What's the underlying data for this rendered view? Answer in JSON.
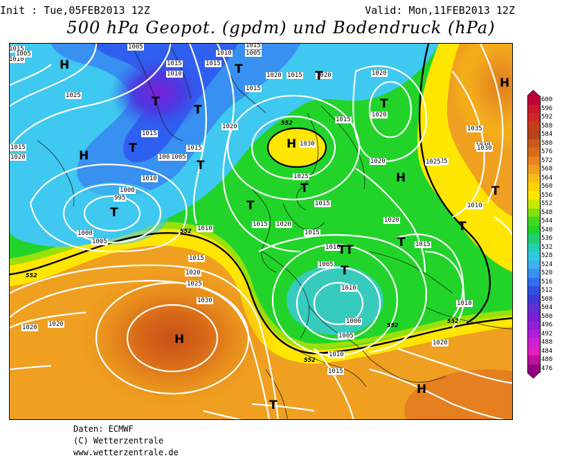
{
  "header": {
    "init": "Init : Tue,05FEB2013 12Z",
    "valid": "Valid: Mon,11FEB2013 12Z",
    "title": "500 hPa Geopot. (gpdm) und Bodendruck (hPa)"
  },
  "footer": {
    "source": "Daten: ECMWF",
    "copyright": "(C) Wetterzentrale",
    "url": "www.wetterzentrale.de"
  },
  "colors": {
    "purple": "#7a1fd6",
    "blue": "#2f5ff0",
    "cyan": "#3fc8f0",
    "green": "#22d42a",
    "yellow": "#ffe600",
    "orange": "#f0a020",
    "dark_orange": "#d86a18",
    "isobar": "#ffffff",
    "contour_552": "#000000"
  },
  "scale": {
    "values": [
      "600",
      "596",
      "592",
      "588",
      "584",
      "580",
      "576",
      "572",
      "568",
      "564",
      "560",
      "556",
      "552",
      "548",
      "544",
      "540",
      "536",
      "532",
      "528",
      "524",
      "520",
      "516",
      "512",
      "508",
      "504",
      "500",
      "496",
      "492",
      "488",
      "484",
      "480",
      "476"
    ],
    "colors": [
      "#c0003c",
      "#c81830",
      "#d02828",
      "#c83c1c",
      "#b84418",
      "#c85a1c",
      "#d86a18",
      "#e88420",
      "#f0a020",
      "#f8bc18",
      "#ffd400",
      "#ffe600",
      "#c8e800",
      "#80e010",
      "#40d820",
      "#22d42a",
      "#20d070",
      "#20d0b0",
      "#30c8e0",
      "#3fb0f0",
      "#3890f0",
      "#2f70f0",
      "#3050e0",
      "#4038d8",
      "#6030d0",
      "#7a1fd6",
      "#9020d8",
      "#b020d8",
      "#d020d0",
      "#e020c0",
      "#c010a0",
      "#900080"
    ]
  },
  "map": {
    "pressure_labels": [
      {
        "text": "1015",
        "name": "isobar-label"
      },
      {
        "text": "1010",
        "name": "isobar-label"
      },
      {
        "text": "1005",
        "name": "isobar-label"
      },
      {
        "text": "1005",
        "name": "isobar-label"
      },
      {
        "text": "1015",
        "name": "isobar-label"
      },
      {
        "text": "1010",
        "name": "isobar-label"
      },
      {
        "text": "1015",
        "name": "isobar-label"
      },
      {
        "text": "1015",
        "name": "isobar-label"
      },
      {
        "text": "1010",
        "name": "isobar-label"
      },
      {
        "text": "1005",
        "name": "isobar-label"
      },
      {
        "text": "1015",
        "name": "isobar-label"
      },
      {
        "text": "1020",
        "name": "isobar-label"
      },
      {
        "text": "1025",
        "name": "isobar-label"
      },
      {
        "text": "1015",
        "name": "isobar-label"
      },
      {
        "text": "1015",
        "name": "isobar-label"
      },
      {
        "text": "1020",
        "name": "isobar-label"
      },
      {
        "text": "1010",
        "name": "isobar-label"
      },
      {
        "text": "1015",
        "name": "isobar-label"
      },
      {
        "text": "1005",
        "name": "isobar-label"
      },
      {
        "text": "1015",
        "name": "isobar-label"
      },
      {
        "text": "1020",
        "name": "isobar-label"
      },
      {
        "text": "1020",
        "name": "isobar-label"
      },
      {
        "text": "1015",
        "name": "isobar-label"
      },
      {
        "text": "1005",
        "name": "isobar-label"
      },
      {
        "text": "1020",
        "name": "isobar-label"
      },
      {
        "text": "1030",
        "name": "isobar-label"
      },
      {
        "text": "1025",
        "name": "isobar-label"
      },
      {
        "text": "1015",
        "name": "isobar-label"
      },
      {
        "text": "1020",
        "name": "isobar-label"
      },
      {
        "text": "1020",
        "name": "isobar-label"
      },
      {
        "text": "1035",
        "name": "isobar-label"
      },
      {
        "text": "1030",
        "name": "isobar-label"
      },
      {
        "text": "1025",
        "name": "isobar-label"
      },
      {
        "text": "1015",
        "name": "isobar-label"
      },
      {
        "text": "1010",
        "name": "isobar-label"
      },
      {
        "text": "1000",
        "name": "isobar-label"
      },
      {
        "text": "995",
        "name": "isobar-label"
      },
      {
        "text": "1000",
        "name": "isobar-label"
      },
      {
        "text": "1005",
        "name": "isobar-label"
      },
      {
        "text": "1010",
        "name": "isobar-label"
      },
      {
        "text": "1015",
        "name": "isobar-label"
      },
      {
        "text": "1020",
        "name": "isobar-label"
      },
      {
        "text": "1025",
        "name": "isobar-label"
      },
      {
        "text": "1030",
        "name": "isobar-label"
      },
      {
        "text": "1015",
        "name": "isobar-label"
      },
      {
        "text": "1020",
        "name": "isobar-label"
      },
      {
        "text": "1015",
        "name": "isobar-label"
      },
      {
        "text": "1010",
        "name": "isobar-label"
      },
      {
        "text": "1005",
        "name": "isobar-label"
      },
      {
        "text": "1010",
        "name": "isobar-label"
      },
      {
        "text": "1000",
        "name": "isobar-label"
      },
      {
        "text": "1005",
        "name": "isobar-label"
      },
      {
        "text": "1010",
        "name": "isobar-label"
      },
      {
        "text": "1015",
        "name": "isobar-label"
      },
      {
        "text": "1015",
        "name": "isobar-label"
      },
      {
        "text": "1010",
        "name": "isobar-label"
      },
      {
        "text": "1020",
        "name": "isobar-label"
      },
      {
        "text": "1020",
        "name": "isobar-label"
      },
      {
        "text": "1020",
        "name": "isobar-label"
      },
      {
        "text": "1025",
        "name": "isobar-label"
      },
      {
        "text": "1020",
        "name": "isobar-label"
      },
      {
        "text": "1025",
        "name": "isobar-label"
      },
      {
        "text": "1020",
        "name": "isobar-label"
      },
      {
        "text": "1030",
        "name": "isobar-label"
      },
      {
        "text": "1010",
        "name": "isobar-label"
      },
      {
        "text": "1015",
        "name": "isobar-label"
      }
    ],
    "pressure_centers": [
      {
        "text": "H"
      },
      {
        "text": "T"
      },
      {
        "text": "T"
      },
      {
        "text": "T"
      },
      {
        "text": "H"
      },
      {
        "text": "T"
      },
      {
        "text": "T"
      },
      {
        "text": "T"
      },
      {
        "text": "H"
      },
      {
        "text": "T"
      },
      {
        "text": "T"
      },
      {
        "text": "T"
      },
      {
        "text": "H"
      },
      {
        "text": "T"
      },
      {
        "text": "T"
      },
      {
        "text": "H"
      },
      {
        "text": "T"
      },
      {
        "text": "T"
      },
      {
        "text": "T"
      },
      {
        "text": "T"
      },
      {
        "text": "H"
      },
      {
        "text": "T"
      },
      {
        "text": "H"
      },
      {
        "text": "T"
      }
    ],
    "contour_labels": [
      {
        "text": "552"
      },
      {
        "text": "552"
      },
      {
        "text": "552"
      },
      {
        "text": "552"
      },
      {
        "text": "552"
      },
      {
        "text": "552"
      }
    ]
  }
}
